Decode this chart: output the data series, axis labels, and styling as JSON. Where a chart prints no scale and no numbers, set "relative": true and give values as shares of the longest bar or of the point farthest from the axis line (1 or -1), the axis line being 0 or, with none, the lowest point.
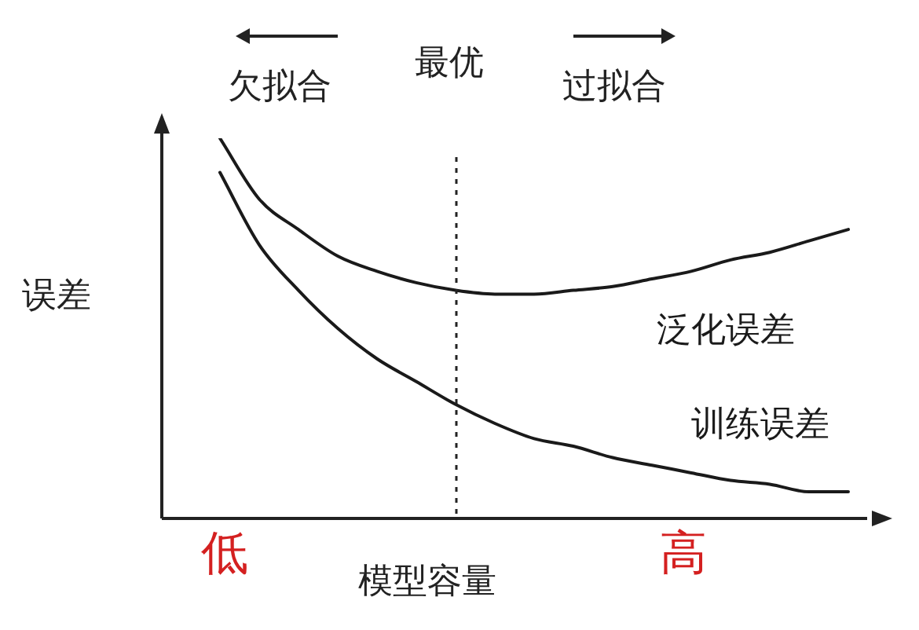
{
  "chart_data": {
    "type": "line",
    "relative": true,
    "xlabel": "模型容量",
    "ylabel": "误差",
    "categories": [
      null,
      null,
      null,
      null,
      null,
      null,
      null,
      null,
      null,
      null,
      null,
      null,
      null,
      null,
      null,
      null,
      null,
      null
    ],
    "series": [
      {
        "name": "泛化误差",
        "color": "#1a1a1a",
        "values": [
          null,
          1,
          0.84,
          0.76,
          0.69,
          0.65,
          0.62,
          0.6,
          0.59,
          0.59,
          0.6,
          0.61,
          0.63,
          0.65,
          0.68,
          0.7,
          0.73,
          0.76
        ]
      },
      {
        "name": "训练误差",
        "color": "#1a1a1a",
        "values": [
          null,
          0.91,
          0.72,
          0.6,
          0.5,
          0.42,
          0.36,
          0.3,
          0.25,
          0.21,
          0.19,
          0.16,
          0.14,
          0.12,
          0.1,
          0.09,
          0.07,
          0.07
        ]
      }
    ],
    "annotations": [
      "欠拟合",
      "过拟合",
      "低",
      "高",
      "最优"
    ],
    "grid": false,
    "legend": false,
    "tick_labels": false,
    "marker": "none",
    "line_style": "solid"
  }
}
